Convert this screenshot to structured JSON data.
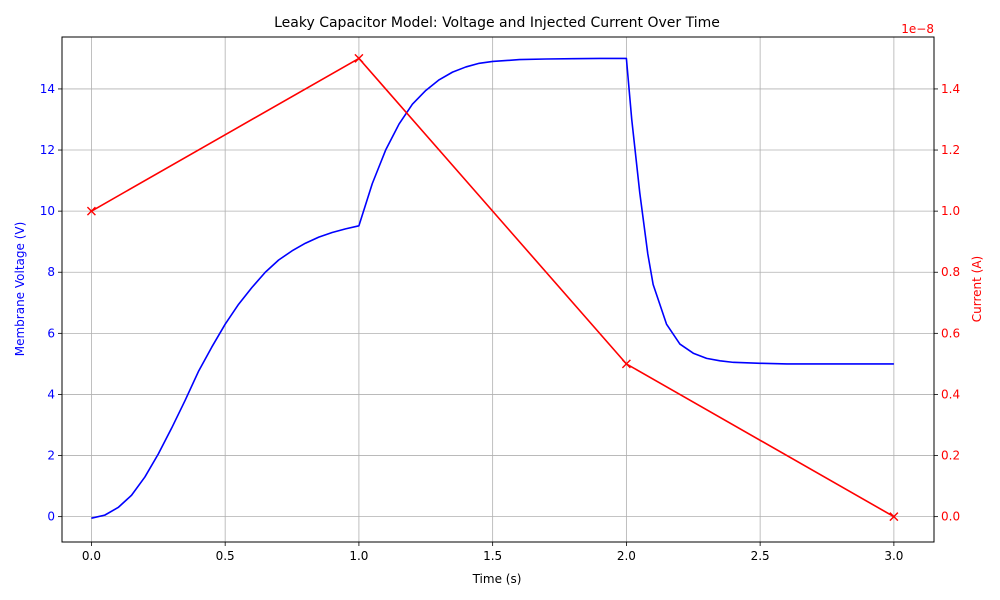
{
  "chart_data": {
    "type": "line",
    "title": "Leaky Capacitor Model: Voltage and Injected Current Over Time",
    "xlabel": "Time (s)",
    "ylabel": "Membrane Voltage (V)",
    "y2label": "Current (A)",
    "y2_offset_text": "1e−8",
    "xlim": [
      -0.11,
      3.15
    ],
    "ylim": [
      -0.83,
      15.7
    ],
    "y2lim": [
      -8.3e-10,
      1.57e-08
    ],
    "xticks": [
      0.0,
      0.5,
      1.0,
      1.5,
      2.0,
      2.5,
      3.0
    ],
    "xtick_labels": [
      "0.0",
      "0.5",
      "1.0",
      "1.5",
      "2.0",
      "2.5",
      "3.0"
    ],
    "yticks": [
      0,
      2,
      4,
      6,
      8,
      10,
      12,
      14
    ],
    "ytick_labels": [
      "0",
      "2",
      "4",
      "6",
      "8",
      "10",
      "12",
      "14"
    ],
    "y2ticks": [
      0.0,
      0.2,
      0.4,
      0.6,
      0.8,
      1.0,
      1.2,
      1.4
    ],
    "y2tick_labels": [
      "0.0",
      "0.2",
      "0.4",
      "0.6",
      "0.8",
      "1.0",
      "1.2",
      "1.4"
    ],
    "y2_scale": 1e-08,
    "grid": true,
    "colors": {
      "voltage": "#0000ff",
      "current": "#ff0000",
      "grid": "#b0b0b0",
      "axis": "#000000"
    },
    "series": [
      {
        "key": "voltage",
        "axis": "left",
        "x": [
          0.0,
          0.05,
          0.1,
          0.15,
          0.2,
          0.25,
          0.3,
          0.35,
          0.4,
          0.45,
          0.5,
          0.55,
          0.6,
          0.65,
          0.7,
          0.75,
          0.8,
          0.85,
          0.9,
          0.95,
          1.0,
          1.05,
          1.1,
          1.15,
          1.2,
          1.25,
          1.3,
          1.35,
          1.4,
          1.45,
          1.5,
          1.6,
          1.7,
          1.8,
          1.9,
          2.0,
          2.02,
          2.05,
          2.08,
          2.1,
          2.15,
          2.2,
          2.25,
          2.3,
          2.35,
          2.4,
          2.5,
          2.6,
          2.7,
          2.8,
          2.9,
          3.0
        ],
        "values": [
          -0.05,
          0.05,
          0.3,
          0.7,
          1.3,
          2.05,
          2.9,
          3.8,
          4.75,
          5.55,
          6.3,
          6.95,
          7.5,
          8.0,
          8.4,
          8.7,
          8.95,
          9.15,
          9.3,
          9.42,
          9.52,
          10.9,
          12.0,
          12.85,
          13.5,
          13.95,
          14.3,
          14.55,
          14.72,
          14.84,
          14.9,
          14.96,
          14.98,
          14.99,
          15.0,
          15.0,
          13.0,
          10.6,
          8.6,
          7.6,
          6.3,
          5.65,
          5.35,
          5.18,
          5.1,
          5.05,
          5.02,
          5.0,
          5.0,
          5.0,
          5.0,
          5.0
        ]
      },
      {
        "key": "current",
        "axis": "right",
        "marker": "x",
        "x": [
          0.0,
          1.0,
          2.0,
          3.0
        ],
        "values": [
          1e-08,
          1.5e-08,
          5e-09,
          0.0
        ]
      }
    ]
  }
}
